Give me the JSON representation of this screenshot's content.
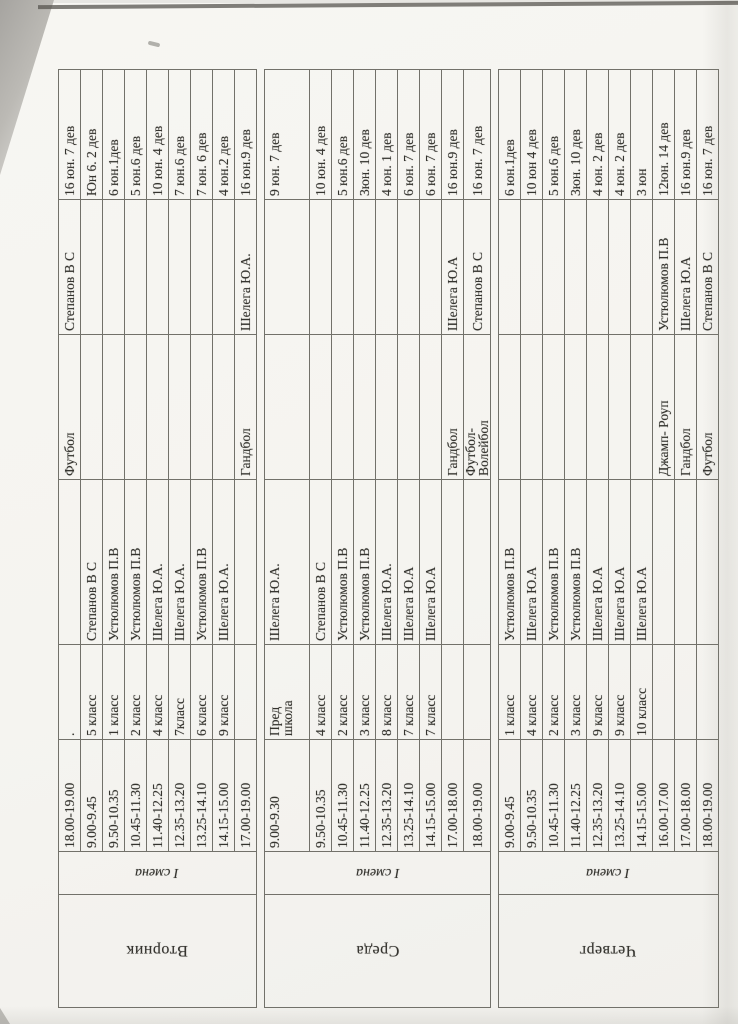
{
  "colors": {
    "paper": "#f6f5f1",
    "ink": "#35342f",
    "grid_line": "#72716a"
  },
  "days": [
    {
      "name": "Вторник",
      "shift": "I смена",
      "rows": [
        {
          "time": "18.00-19.00",
          "class_label": ".",
          "class_teacher": "",
          "sport": "Футбол",
          "sport_teacher": "Степанов В С",
          "group": "16 юн. 7 дев"
        },
        {
          "time": "9.00-9.45",
          "class_label": "5 класс",
          "class_teacher": "Степанов В С",
          "sport": "",
          "sport_teacher": "",
          "group": "Юн 6. 2 дев"
        },
        {
          "time": "9.50-10.35",
          "class_label": "1 класс",
          "class_teacher": "Устюлюмов П.В",
          "sport": "",
          "sport_teacher": "",
          "group": "6 юн.1дев"
        },
        {
          "time": "10.45-11.30",
          "class_label": "2 класс",
          "class_teacher": "Устюлюмов П.В",
          "sport": "",
          "sport_teacher": "",
          "group": "5 юн.6 дев"
        },
        {
          "time": "11.40-12.25",
          "class_label": "4 класс",
          "class_teacher": "Шелега Ю.А.",
          "sport": "",
          "sport_teacher": "",
          "group": "10 юн. 4 дев"
        },
        {
          "time": "12.35-13.20",
          "class_label": "7класс",
          "class_teacher": "Шелега Ю.А.",
          "sport": "",
          "sport_teacher": "",
          "group": "7 юн.6 дев"
        },
        {
          "time": "13.25-14.10",
          "class_label": "6 класс",
          "class_teacher": "Устюлюмов П.В",
          "sport": "",
          "sport_teacher": "",
          "group": "7 юн. 6 дев"
        },
        {
          "time": "14.15-15.00",
          "class_label": "9 класс",
          "class_teacher": "Шелега Ю.А.",
          "sport": "",
          "sport_teacher": "",
          "group": "4 юн.2 дев"
        },
        {
          "time": "17.00-19.00",
          "class_label": "",
          "class_teacher": "",
          "sport": "Гандбол",
          "sport_teacher": "Шелега Ю.А.",
          "group": "16 юн.9 дев"
        }
      ]
    },
    {
      "name": "Среда",
      "shift": "I смена",
      "rows": [
        {
          "time": "9.00-9.30",
          "class_label": "Пред\nшкола",
          "class_teacher": "Шелега Ю.А.",
          "sport": "",
          "sport_teacher": "",
          "group": "9 юн. 7 дев"
        },
        {
          "time": "9.50-10.35",
          "class_label": "4 класс",
          "class_teacher": "Степанов В С",
          "sport": "",
          "sport_teacher": "",
          "group": "10 юн. 4 дев"
        },
        {
          "time": "10.45-11.30",
          "class_label": "2 класс",
          "class_teacher": "Устюлюмов П.В",
          "sport": "",
          "sport_teacher": "",
          "group": "5 юн.6 дев"
        },
        {
          "time": "11.40-12.25",
          "class_label": "3 класс",
          "class_teacher": "Устюлюмов П.В",
          "sport": "",
          "sport_teacher": "",
          "group": "3юн. 10 дев"
        },
        {
          "time": "12.35-13.20",
          "class_label": "8 класс",
          "class_teacher": "Шелега Ю.А.",
          "sport": "",
          "sport_teacher": "",
          "group": "4 юн. 1 дев"
        },
        {
          "time": "13.25-14.10",
          "class_label": "7 класс",
          "class_teacher": "Шелега Ю.А",
          "sport": "",
          "sport_teacher": "",
          "group": "6 юн. 7 дев"
        },
        {
          "time": "14.15-15.00",
          "class_label": "7 класс",
          "class_teacher": "Шелега Ю.А",
          "sport": "",
          "sport_teacher": "",
          "group": "6 юн. 7 дев"
        },
        {
          "time": "17.00-18.00",
          "class_label": "",
          "class_teacher": "",
          "sport": "Гандбол",
          "sport_teacher": "Шелега Ю.А",
          "group": "16 юн.9 дев"
        },
        {
          "time": "18.00-19.00",
          "class_label": "",
          "class_teacher": "",
          "sport": "Футбол-\nВолейбол",
          "sport_teacher": "Степанов В С",
          "group": "16 юн. 7 дев"
        }
      ]
    },
    {
      "name": "Четверг",
      "shift": "I смена",
      "rows": [
        {
          "time": "9.00-9.45",
          "class_label": "1 класс",
          "class_teacher": "Устюлюмов П.В",
          "sport": "",
          "sport_teacher": "",
          "group": "6 юн.1дев"
        },
        {
          "time": "9.50-10.35",
          "class_label": "4 класс",
          "class_teacher": "Шелега Ю.А",
          "sport": "",
          "sport_teacher": "",
          "group": "10 юн 4 дев"
        },
        {
          "time": "10.45-11.30",
          "class_label": "2 класс",
          "class_teacher": "Устюлюмов П.В",
          "sport": "",
          "sport_teacher": "",
          "group": "5 юн.6 дев"
        },
        {
          "time": "11.40-12.25",
          "class_label": "3 класс",
          "class_teacher": "Устюлюмов П.В",
          "sport": "",
          "sport_teacher": "",
          "group": "3юн. 10 дев"
        },
        {
          "time": "12.35-13.20",
          "class_label": "9 класс",
          "class_teacher": "Шелега Ю.А",
          "sport": "",
          "sport_teacher": "",
          "group": "4 юн. 2 дев"
        },
        {
          "time": "13.25-14.10",
          "class_label": "9 класс",
          "class_teacher": "Шелега Ю.А",
          "sport": "",
          "sport_teacher": "",
          "group": "4 юн. 2 дев"
        },
        {
          "time": "14.15-15.00",
          "class_label": "10 класс",
          "class_teacher": "Шелега Ю.А",
          "sport": "",
          "sport_teacher": "",
          "group": "3 юн"
        },
        {
          "time": "16.00-17.00",
          "class_label": "",
          "class_teacher": "",
          "sport": "Джамп- Роуп",
          "sport_teacher": "Устюлюмов П.В",
          "group": "12юн. 14 дев"
        },
        {
          "time": "17.00-18.00",
          "class_label": "",
          "class_teacher": "",
          "sport": "Гандбол",
          "sport_teacher": "Шелега Ю.А",
          "group": "16 юн.9 дев"
        },
        {
          "time": "18.00-19.00",
          "class_label": "",
          "class_teacher": "",
          "sport": "Футбол",
          "sport_teacher": "Степанов В С",
          "group": "16 юн. 7 дев"
        }
      ]
    }
  ]
}
